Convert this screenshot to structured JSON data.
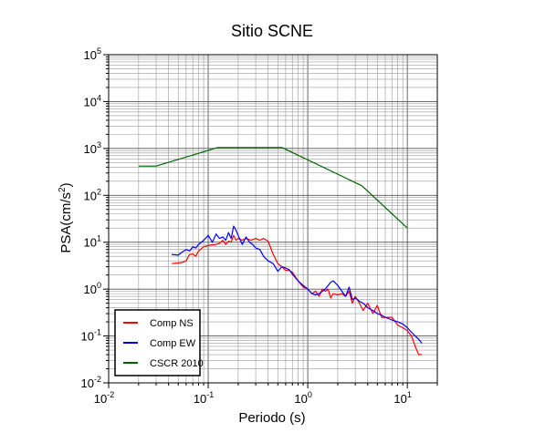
{
  "chart_data": {
    "type": "line",
    "title": "Sitio SCNE",
    "xlabel": "Periodo (s)",
    "ylabel": {
      "prefix": "PSA(cm/s",
      "superscript": "2",
      "suffix": ")"
    },
    "xscale": "log",
    "yscale": "log",
    "xlim": [
      0.01,
      20
    ],
    "ylim": [
      0.01,
      100000
    ],
    "grid": true,
    "legend_position": "bottom-left",
    "x_ticks": [
      {
        "value": 0.01,
        "base": "10",
        "exp": "-2"
      },
      {
        "value": 0.1,
        "base": "10",
        "exp": "-1"
      },
      {
        "value": 1,
        "base": "10",
        "exp": "0"
      },
      {
        "value": 10,
        "base": "10",
        "exp": "1"
      }
    ],
    "y_ticks": [
      {
        "value": 0.01,
        "base": "10",
        "exp": "-2"
      },
      {
        "value": 0.1,
        "base": "10",
        "exp": "-1"
      },
      {
        "value": 1,
        "base": "10",
        "exp": "0"
      },
      {
        "value": 10,
        "base": "10",
        "exp": "1"
      },
      {
        "value": 100,
        "base": "10",
        "exp": "2"
      },
      {
        "value": 1000,
        "base": "10",
        "exp": "3"
      },
      {
        "value": 10000,
        "base": "10",
        "exp": "4"
      },
      {
        "value": 100000,
        "base": "10",
        "exp": "5"
      }
    ],
    "series": [
      {
        "name": "Comp NS",
        "color": "#ff0000",
        "points": [
          [
            0.043,
            3.5
          ],
          [
            0.05,
            3.6
          ],
          [
            0.055,
            3.7
          ],
          [
            0.06,
            4.0
          ],
          [
            0.065,
            5.5
          ],
          [
            0.07,
            5.6
          ],
          [
            0.075,
            5.0
          ],
          [
            0.08,
            6.5
          ],
          [
            0.09,
            8.0
          ],
          [
            0.1,
            8.5
          ],
          [
            0.11,
            8.8
          ],
          [
            0.12,
            9.0
          ],
          [
            0.13,
            9.5
          ],
          [
            0.14,
            11.0
          ],
          [
            0.15,
            9.0
          ],
          [
            0.16,
            10.5
          ],
          [
            0.17,
            10.0
          ],
          [
            0.18,
            14.0
          ],
          [
            0.19,
            11.0
          ],
          [
            0.2,
            12.0
          ],
          [
            0.22,
            11.0
          ],
          [
            0.24,
            12.0
          ],
          [
            0.27,
            11.0
          ],
          [
            0.3,
            12.0
          ],
          [
            0.33,
            11.0
          ],
          [
            0.36,
            12.0
          ],
          [
            0.4,
            10.5
          ],
          [
            0.45,
            5.5
          ],
          [
            0.5,
            3.5
          ],
          [
            0.55,
            3.0
          ],
          [
            0.6,
            2.5
          ],
          [
            0.65,
            2.5
          ],
          [
            0.7,
            2.3
          ],
          [
            0.8,
            1.5
          ],
          [
            0.9,
            1.1
          ],
          [
            1.0,
            1.0
          ],
          [
            1.1,
            0.8
          ],
          [
            1.2,
            0.9
          ],
          [
            1.3,
            0.7
          ],
          [
            1.4,
            1.0
          ],
          [
            1.5,
            0.9
          ],
          [
            1.6,
            1.0
          ],
          [
            1.7,
            0.65
          ],
          [
            1.8,
            0.8
          ],
          [
            2.0,
            0.75
          ],
          [
            2.2,
            0.8
          ],
          [
            2.4,
            0.7
          ],
          [
            2.6,
            0.9
          ],
          [
            2.8,
            0.5
          ],
          [
            3.0,
            0.7
          ],
          [
            3.3,
            0.5
          ],
          [
            3.6,
            0.35
          ],
          [
            4.0,
            0.5
          ],
          [
            4.5,
            0.3
          ],
          [
            5.0,
            0.45
          ],
          [
            5.5,
            0.25
          ],
          [
            6.0,
            0.25
          ],
          [
            7.0,
            0.25
          ],
          [
            8.0,
            0.17
          ],
          [
            9.0,
            0.15
          ],
          [
            10.0,
            0.13
          ],
          [
            11.0,
            0.1
          ],
          [
            12.0,
            0.06
          ],
          [
            13.0,
            0.04
          ],
          [
            14.0,
            0.04
          ]
        ]
      },
      {
        "name": "Comp EW",
        "color": "#0000ff",
        "points": [
          [
            0.043,
            5.5
          ],
          [
            0.05,
            5.3
          ],
          [
            0.055,
            6.2
          ],
          [
            0.06,
            7.0
          ],
          [
            0.065,
            6.5
          ],
          [
            0.07,
            8.0
          ],
          [
            0.075,
            7.5
          ],
          [
            0.08,
            9.0
          ],
          [
            0.09,
            11.0
          ],
          [
            0.1,
            14.0
          ],
          [
            0.11,
            10.0
          ],
          [
            0.12,
            15.0
          ],
          [
            0.13,
            12.0
          ],
          [
            0.14,
            13.0
          ],
          [
            0.15,
            11.0
          ],
          [
            0.16,
            16.0
          ],
          [
            0.17,
            12.0
          ],
          [
            0.18,
            22.0
          ],
          [
            0.19,
            18.0
          ],
          [
            0.2,
            14.0
          ],
          [
            0.22,
            9.0
          ],
          [
            0.24,
            13.0
          ],
          [
            0.26,
            10.0
          ],
          [
            0.28,
            9.0
          ],
          [
            0.3,
            7.5
          ],
          [
            0.33,
            7.0
          ],
          [
            0.36,
            5.0
          ],
          [
            0.4,
            4.0
          ],
          [
            0.45,
            3.5
          ],
          [
            0.5,
            2.4
          ],
          [
            0.55,
            3.0
          ],
          [
            0.6,
            2.8
          ],
          [
            0.65,
            2.6
          ],
          [
            0.7,
            2.1
          ],
          [
            0.8,
            1.5
          ],
          [
            0.9,
            1.2
          ],
          [
            1.0,
            1.0
          ],
          [
            1.1,
            0.8
          ],
          [
            1.2,
            0.75
          ],
          [
            1.3,
            0.8
          ],
          [
            1.5,
            1.0
          ],
          [
            1.7,
            1.4
          ],
          [
            1.8,
            1.5
          ],
          [
            2.0,
            1.2
          ],
          [
            2.2,
            0.9
          ],
          [
            2.4,
            0.7
          ],
          [
            2.6,
            1.1
          ],
          [
            2.8,
            0.6
          ],
          [
            3.0,
            0.65
          ],
          [
            3.3,
            0.55
          ],
          [
            3.6,
            0.5
          ],
          [
            4.0,
            0.4
          ],
          [
            4.5,
            0.35
          ],
          [
            5.0,
            0.3
          ],
          [
            5.5,
            0.28
          ],
          [
            6.0,
            0.25
          ],
          [
            7.0,
            0.22
          ],
          [
            8.0,
            0.2
          ],
          [
            9.0,
            0.18
          ],
          [
            10.0,
            0.15
          ],
          [
            11.0,
            0.12
          ],
          [
            12.0,
            0.1
          ],
          [
            13.0,
            0.085
          ],
          [
            14.0,
            0.07
          ]
        ]
      },
      {
        "name": "CSCR 2010",
        "color": "#006400",
        "points": [
          [
            0.02,
            420
          ],
          [
            0.03,
            420
          ],
          [
            0.125,
            1050
          ],
          [
            0.55,
            1050
          ],
          [
            3.5,
            160
          ],
          [
            10.0,
            20
          ]
        ]
      }
    ]
  }
}
